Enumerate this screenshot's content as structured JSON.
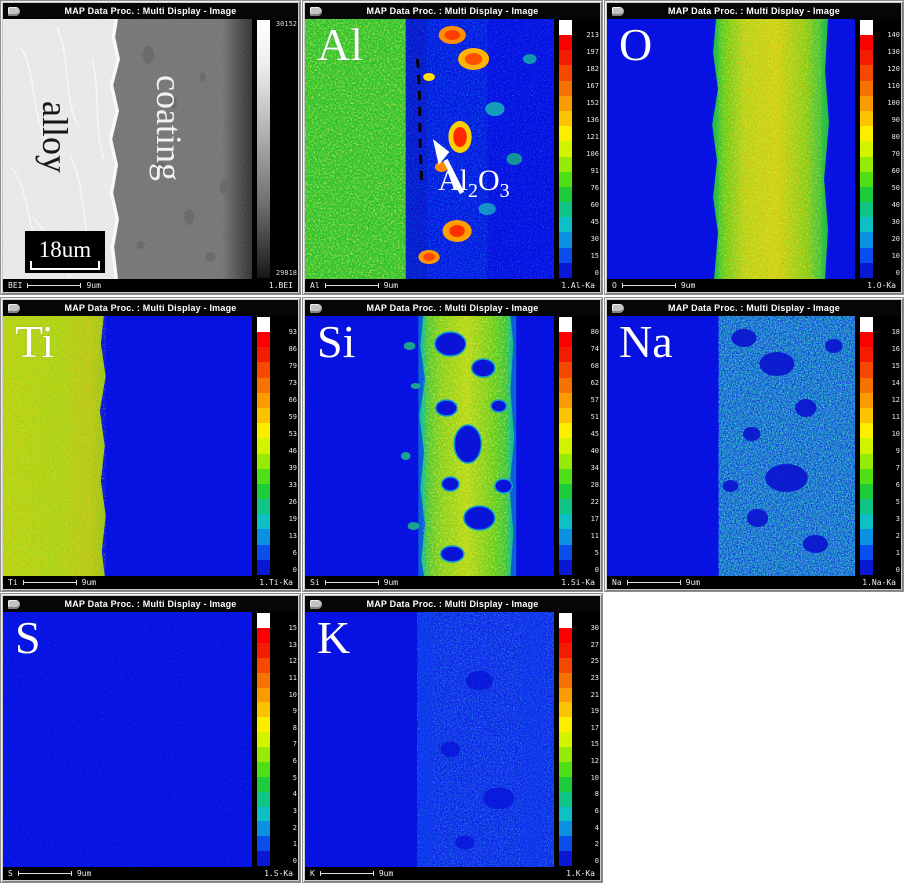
{
  "app": {
    "window_title": "MAP Data Proc. : Multi Display - Image"
  },
  "colorbar": {
    "overflow_color": "#ffffff",
    "palette": [
      "#fa0000",
      "#f41c00",
      "#f64800",
      "#f87200",
      "#fa9c00",
      "#fcc400",
      "#fdee00",
      "#d2f400",
      "#96ea06",
      "#50de14",
      "#1ecb3a",
      "#10c488",
      "#0cc0c6",
      "#0b90e2",
      "#0b4eee",
      "#0a18d4"
    ]
  },
  "panels": [
    {
      "id": "bei",
      "element_label": "",
      "scale_type": "gray",
      "gray_scale": {
        "top": "30152",
        "bottom": "29818"
      },
      "status": {
        "left": "BEI",
        "scale": "9um",
        "right": "1.BEI"
      },
      "overlays": {
        "alloy": "alloy",
        "coating": "coating",
        "scalebar": "18um"
      }
    },
    {
      "id": "al",
      "element_label": "Al",
      "scale_type": "rainbow",
      "scale_labels": [
        "213",
        "197",
        "182",
        "167",
        "152",
        "136",
        "121",
        "106",
        "91",
        "76",
        "60",
        "45",
        "30",
        "15",
        "0"
      ],
      "status": {
        "left": "Al",
        "scale": "9um",
        "right": "1.Al-Ka"
      },
      "annotation": {
        "el": "Al",
        "sub1": "2",
        "ox": "O",
        "sub2": "3"
      }
    },
    {
      "id": "o",
      "element_label": "O",
      "scale_type": "rainbow",
      "scale_labels": [
        "140",
        "130",
        "120",
        "110",
        "100",
        "90",
        "80",
        "70",
        "60",
        "50",
        "40",
        "30",
        "20",
        "10",
        "0"
      ],
      "status": {
        "left": "O",
        "scale": "9um",
        "right": "1.O-Ka"
      }
    },
    {
      "id": "ti",
      "element_label": "Ti",
      "scale_type": "rainbow",
      "scale_labels": [
        "93",
        "86",
        "79",
        "73",
        "66",
        "59",
        "53",
        "46",
        "39",
        "33",
        "26",
        "19",
        "13",
        "6",
        "0"
      ],
      "status": {
        "left": "Ti",
        "scale": "9um",
        "right": "1.Ti-Ka"
      }
    },
    {
      "id": "si",
      "element_label": "Si",
      "scale_type": "rainbow",
      "scale_labels": [
        "80",
        "74",
        "68",
        "62",
        "57",
        "51",
        "45",
        "40",
        "34",
        "28",
        "22",
        "17",
        "11",
        "5",
        "0"
      ],
      "status": {
        "left": "Si",
        "scale": "9um",
        "right": "1.Si-Ka"
      }
    },
    {
      "id": "na",
      "element_label": "Na",
      "scale_type": "rainbow",
      "scale_labels": [
        "18",
        "16",
        "15",
        "14",
        "12",
        "11",
        "10",
        "9",
        "7",
        "6",
        "5",
        "3",
        "2",
        "1",
        "0"
      ],
      "status": {
        "left": "Na",
        "scale": "9um",
        "right": "1.Na-Ka"
      }
    },
    {
      "id": "s",
      "element_label": "S",
      "scale_type": "rainbow",
      "scale_labels": [
        "15",
        "13",
        "12",
        "11",
        "10",
        "9",
        "8",
        "7",
        "6",
        "5",
        "4",
        "3",
        "2",
        "1",
        "0"
      ],
      "status": {
        "left": "S",
        "scale": "9um",
        "right": "1.S-Ka"
      }
    },
    {
      "id": "k",
      "element_label": "K",
      "scale_type": "rainbow",
      "scale_labels": [
        "30",
        "27",
        "25",
        "23",
        "21",
        "19",
        "17",
        "15",
        "12",
        "10",
        "8",
        "6",
        "4",
        "2",
        "0"
      ],
      "status": {
        "left": "K",
        "scale": "9um",
        "right": "1.K-Ka"
      }
    }
  ]
}
